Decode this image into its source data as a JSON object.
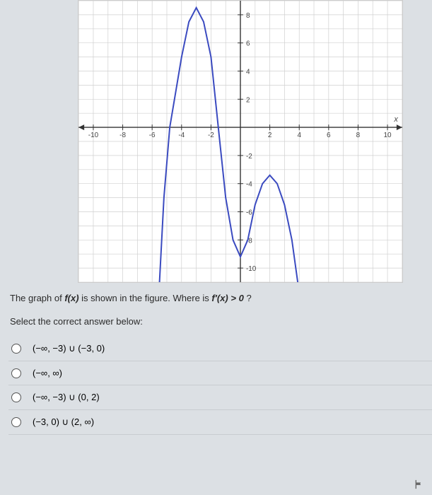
{
  "chart": {
    "type": "line",
    "background_color": "#ffffff",
    "grid_color": "#d0d0d0",
    "axis_color": "#333333",
    "curve_color": "#3a4ac0",
    "curve_width": 2,
    "xlim": [
      -11,
      11
    ],
    "ylim": [
      -11,
      9
    ],
    "xticks": [
      -10,
      -8,
      -6,
      -4,
      -2,
      2,
      4,
      6,
      8,
      10
    ],
    "yticks": [
      -10,
      -8,
      -6,
      -4,
      -2,
      2,
      4,
      6,
      8
    ],
    "x_axis_label": "x",
    "series": {
      "points": [
        [
          -5.5,
          -11
        ],
        [
          -5.2,
          -5
        ],
        [
          -4.8,
          0
        ],
        [
          -4.0,
          5
        ],
        [
          -3.5,
          7.5
        ],
        [
          -3.0,
          8.5
        ],
        [
          -2.5,
          7.5
        ],
        [
          -2.0,
          5
        ],
        [
          -1.5,
          0
        ],
        [
          -1.0,
          -5
        ],
        [
          -0.5,
          -8
        ],
        [
          0.0,
          -9.2
        ],
        [
          0.5,
          -8
        ],
        [
          1.0,
          -5.5
        ],
        [
          1.5,
          -4
        ],
        [
          2.0,
          -3.4
        ],
        [
          2.5,
          -4
        ],
        [
          3.0,
          -5.5
        ],
        [
          3.5,
          -8
        ],
        [
          3.9,
          -11
        ]
      ]
    }
  },
  "question": {
    "prefix": "The graph of ",
    "fx": "f(x)",
    "mid": " is shown in the figure. Where is ",
    "fprime": "f′(x) > 0",
    "suffix": "?"
  },
  "instruction": "Select the correct answer below:",
  "answers": [
    {
      "label": "(−∞, −3) ∪ (−3, 0)"
    },
    {
      "label": "(−∞, ∞)"
    },
    {
      "label": "(−∞, −3) ∪ (0, 2)"
    },
    {
      "label": "(−3, 0) ∪ (2, ∞)"
    }
  ]
}
